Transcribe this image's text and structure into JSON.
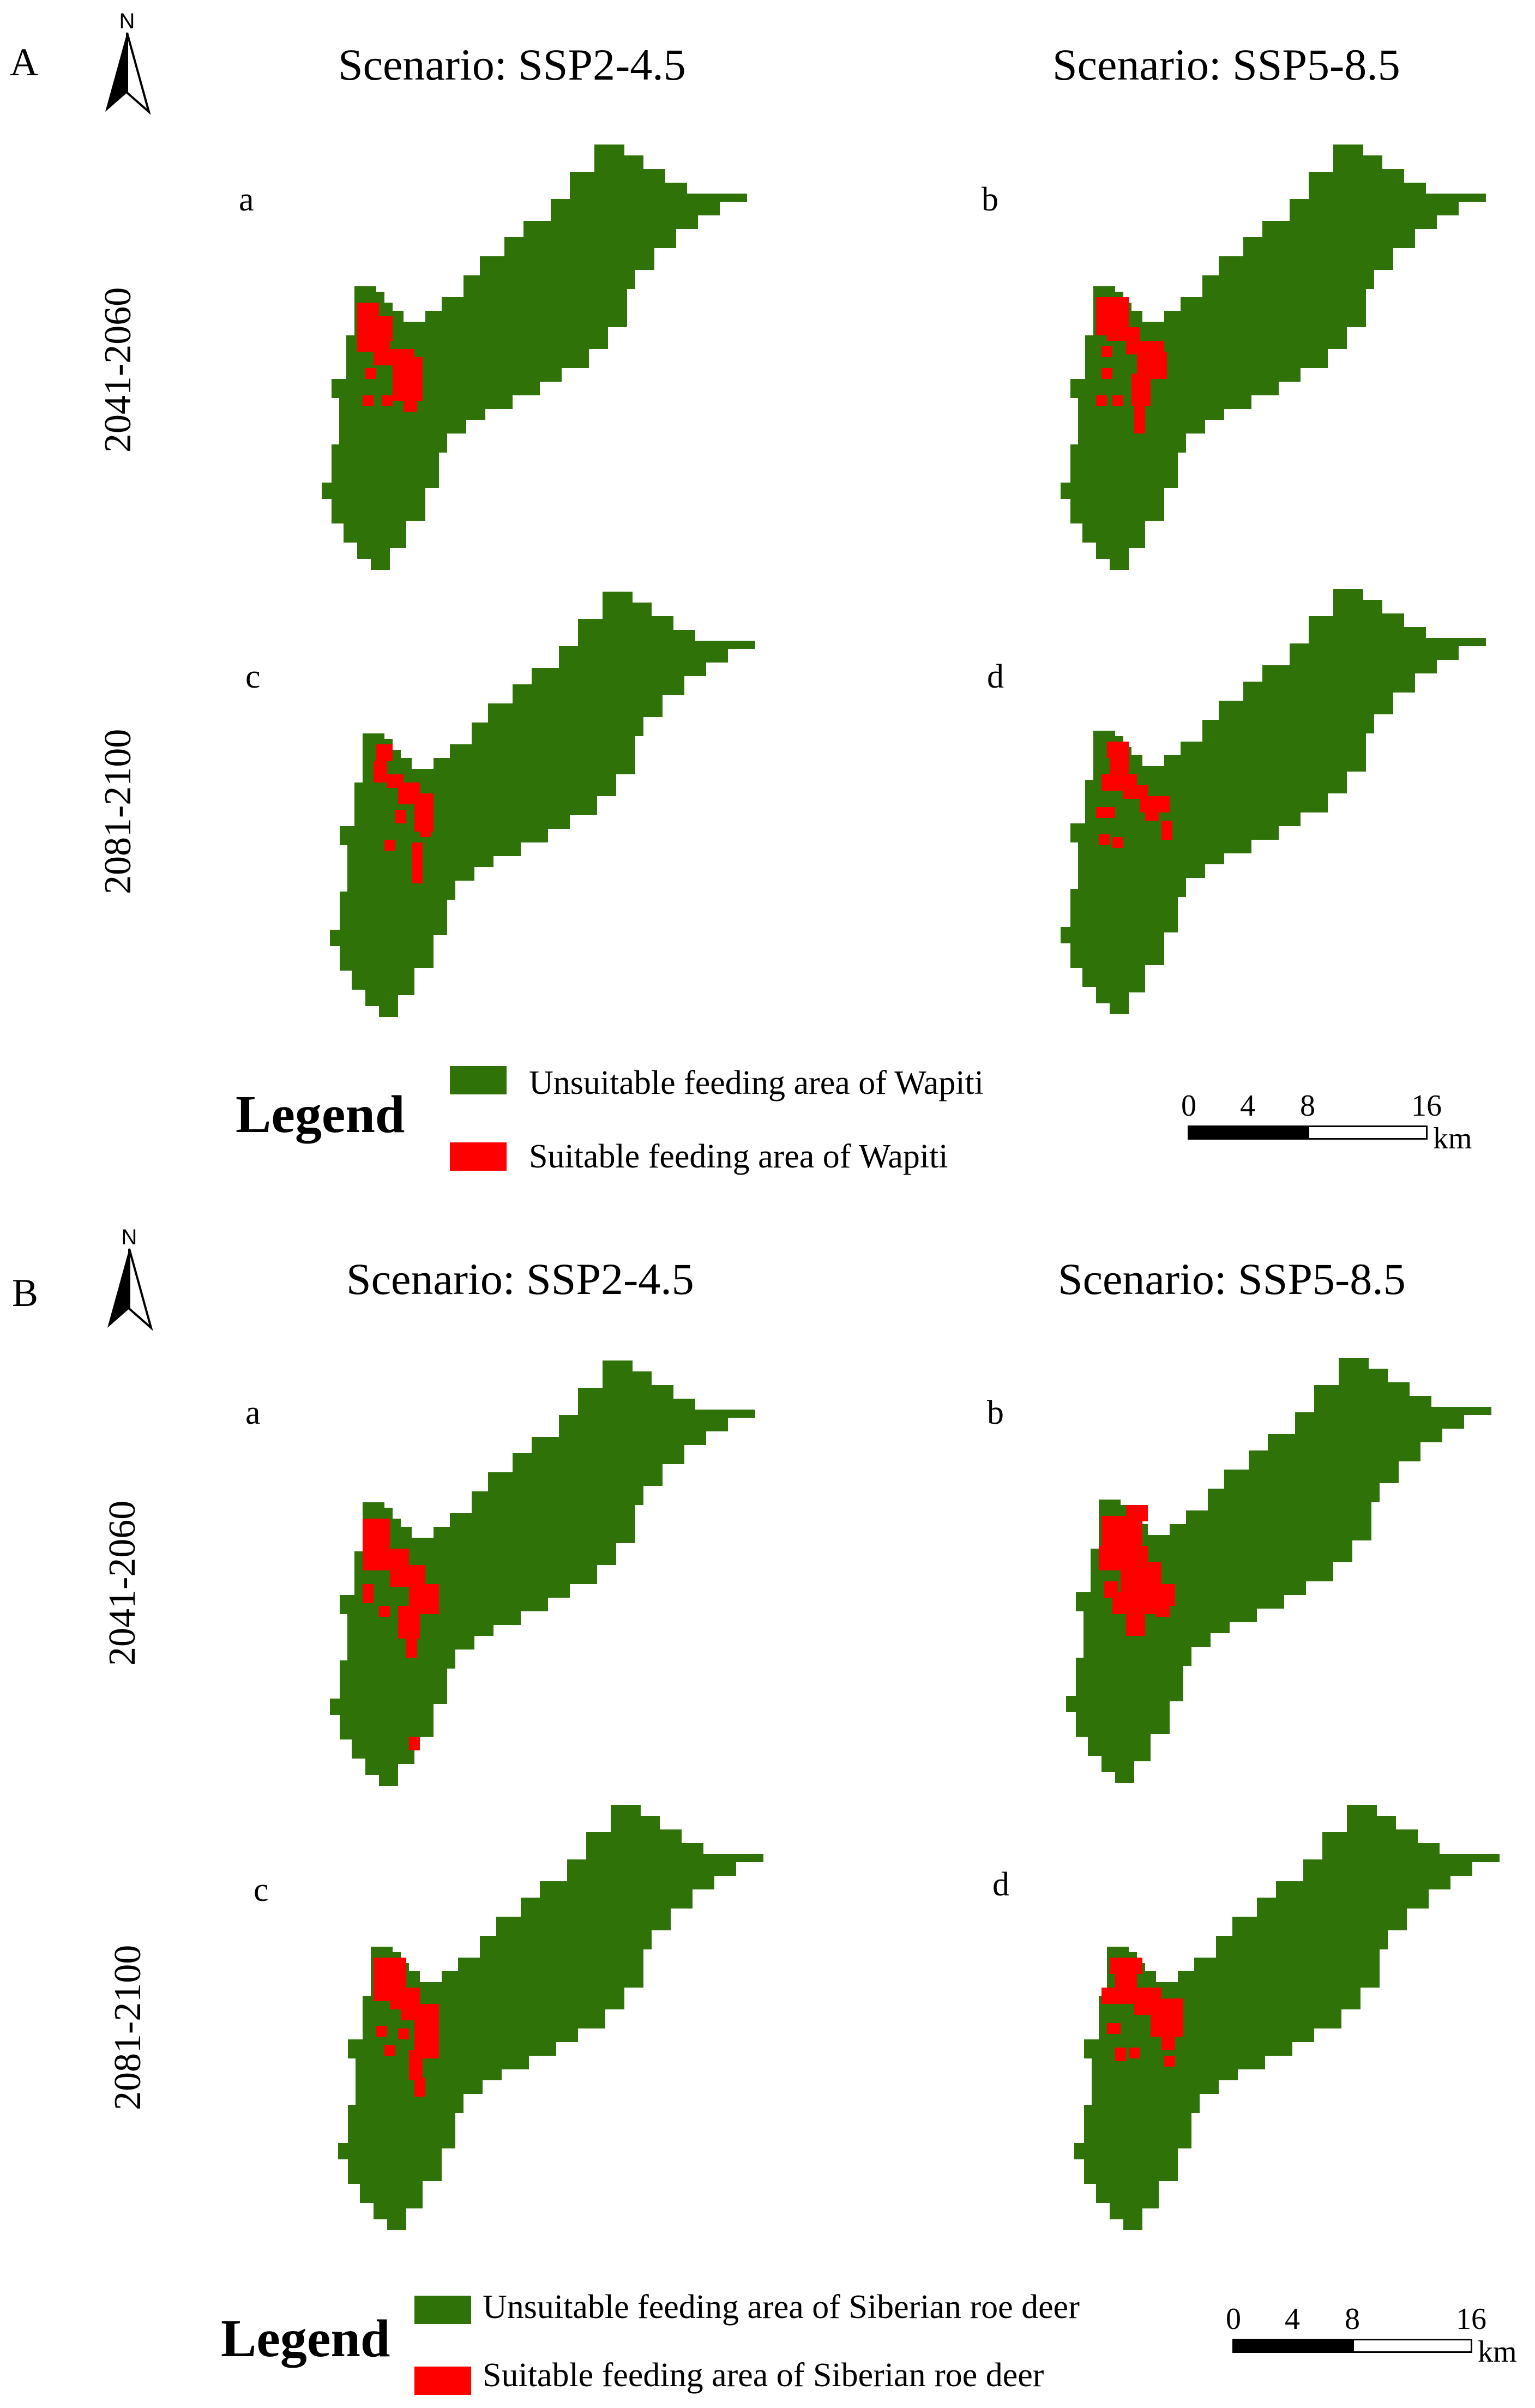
{
  "colors": {
    "unsuitable": "#2E7208",
    "suitable": "#FF0000"
  },
  "panels": [
    {
      "letter": "A",
      "north": "N",
      "scenarios": [
        "Scenario: SSP2-4.5",
        "Scenario: SSP5-8.5"
      ],
      "periods": [
        "2041-2060",
        "2081-2100"
      ],
      "maps": [
        {
          "label": "a"
        },
        {
          "label": "b"
        },
        {
          "label": "c"
        },
        {
          "label": "d"
        }
      ],
      "legend": {
        "title": "Legend",
        "unsuitable": "Unsuitable feeding area of Wapiti",
        "suitable": "Suitable feeding area of Wapiti"
      },
      "scale": {
        "ticks": [
          "0",
          "4",
          "8",
          "16"
        ],
        "unit": "km"
      }
    },
    {
      "letter": "B",
      "north": "N",
      "scenarios": [
        "Scenario: SSP2-4.5",
        "Scenario: SSP5-8.5"
      ],
      "periods": [
        "2041-2060",
        "2081-2100"
      ],
      "maps": [
        {
          "label": "a"
        },
        {
          "label": "b"
        },
        {
          "label": "c"
        },
        {
          "label": "d"
        }
      ],
      "legend": {
        "title": "Legend",
        "unsuitable": "Unsuitable feeding area of Siberian roe deer",
        "suitable": "Suitable feeding area of Siberian roe deer"
      },
      "scale": {
        "ticks": [
          "0",
          "4",
          "8",
          "16"
        ],
        "unit": "km"
      }
    }
  ]
}
